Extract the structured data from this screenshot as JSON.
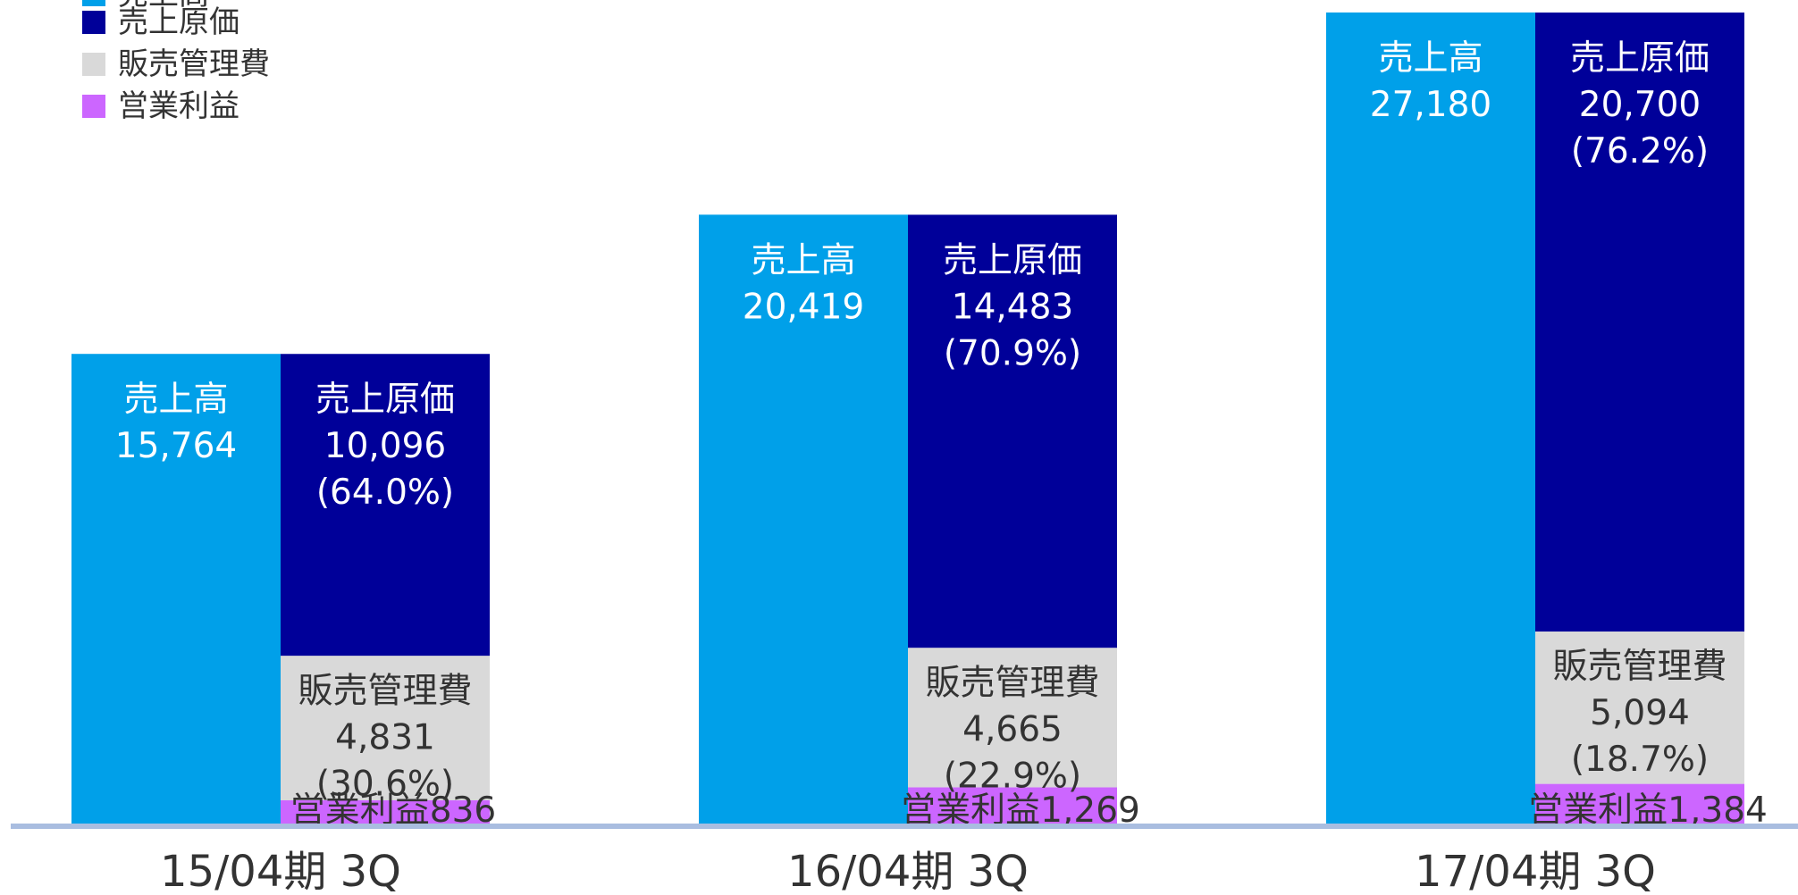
{
  "colors": {
    "sales": "#00A0E9",
    "cogs": "#000099",
    "sga": "#D9D9D9",
    "op_income": "#CC66FF",
    "axis": "#A9BDE0"
  },
  "legend": [
    {
      "key": "sales",
      "label": "売上高"
    },
    {
      "key": "cogs",
      "label": "売上原価"
    },
    {
      "key": "sga",
      "label": "販売管理費"
    },
    {
      "key": "op_income",
      "label": "営業利益"
    }
  ],
  "chart_data": {
    "type": "bar",
    "title": "",
    "xlabel": "",
    "ylabel": "",
    "categories": [
      "15/04期 3Q",
      "16/04期 3Q",
      "17/04期 3Q"
    ],
    "series": [
      {
        "name": "売上高",
        "values": [
          15764,
          20419,
          27180
        ]
      },
      {
        "name": "売上原価",
        "values": [
          10096,
          14483,
          20700
        ]
      },
      {
        "name": "販売管理費",
        "values": [
          4831,
          4665,
          5094
        ]
      },
      {
        "name": "営業利益",
        "values": [
          836,
          1269,
          1384
        ]
      }
    ],
    "ylim": [
      0,
      27180
    ],
    "grid": false,
    "legend_position": "top-left",
    "data_labels": [
      {
        "sales": [
          "売上高",
          "15,764"
        ],
        "cogs": [
          "売上原価",
          "10,096",
          "(64.0%)"
        ],
        "sga": [
          "販売管理費",
          "4,831",
          "(30.6%)"
        ],
        "op_income": "営業利益836"
      },
      {
        "sales": [
          "売上高",
          "20,419"
        ],
        "cogs": [
          "売上原価",
          "14,483",
          "(70.9%)"
        ],
        "sga": [
          "販売管理費",
          "4,665",
          "(22.9%)"
        ],
        "op_income": "営業利益1,269"
      },
      {
        "sales": [
          "売上高",
          "27,180"
        ],
        "cogs": [
          "売上原価",
          "20,700",
          "(76.2%)"
        ],
        "sga": [
          "販売管理費",
          "5,094",
          "(18.7%)"
        ],
        "op_income": "営業利益1,384"
      }
    ]
  }
}
